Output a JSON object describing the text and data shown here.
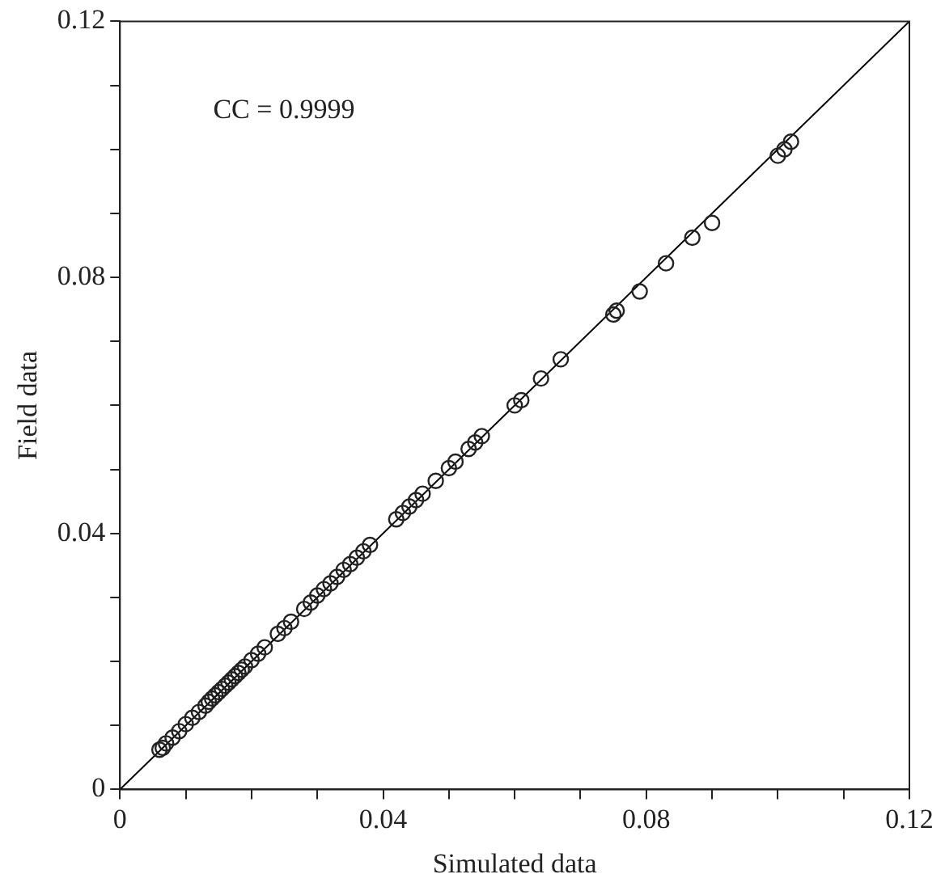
{
  "chart_data": {
    "type": "scatter",
    "xlabel": "Simulated data",
    "ylabel": "Field data",
    "annotations": [
      "CC = 0.9999"
    ],
    "xlim": [
      0,
      0.12
    ],
    "ylim": [
      0,
      0.12
    ],
    "xticks": [
      0,
      {
        "value": 0.01,
        "label": null
      },
      {
        "value": 0.02,
        "label": null
      },
      {
        "value": 0.03,
        "label": null
      },
      0.04,
      {
        "value": 0.05,
        "label": null
      },
      {
        "value": 0.06,
        "label": null
      },
      {
        "value": 0.07,
        "label": null
      },
      0.08,
      {
        "value": 0.09,
        "label": null
      },
      {
        "value": 0.1,
        "label": null
      },
      {
        "value": 0.11,
        "label": null
      },
      0.12
    ],
    "yticks": [
      0,
      {
        "value": 0.01,
        "label": null
      },
      {
        "value": 0.02,
        "label": null
      },
      {
        "value": 0.03,
        "label": null
      },
      0.04,
      {
        "value": 0.05,
        "label": null
      },
      {
        "value": 0.06,
        "label": null
      },
      {
        "value": 0.07,
        "label": null
      },
      0.08,
      {
        "value": 0.09,
        "label": null
      },
      {
        "value": 0.1,
        "label": null
      },
      {
        "value": 0.11,
        "label": null
      },
      0.12
    ],
    "grid": false,
    "legend": false,
    "marker": "circle",
    "series": [
      {
        "color": "#222222",
        "x": [
          0.006,
          0.0065,
          0.007,
          0.008,
          0.009,
          0.01,
          0.011,
          0.012,
          0.013,
          0.0135,
          0.014,
          0.0145,
          0.015,
          0.0155,
          0.016,
          0.0165,
          0.017,
          0.0175,
          0.018,
          0.0185,
          0.019,
          0.02,
          0.021,
          0.022,
          0.024,
          0.025,
          0.026,
          0.028,
          0.029,
          0.03,
          0.031,
          0.032,
          0.033,
          0.034,
          0.035,
          0.036,
          0.037,
          0.038,
          0.042,
          0.043,
          0.044,
          0.045,
          0.046,
          0.048,
          0.05,
          0.051,
          0.053,
          0.054,
          0.055,
          0.06,
          0.061,
          0.064,
          0.067,
          0.075,
          0.0755,
          0.079,
          0.083,
          0.087,
          0.09,
          0.1,
          0.101,
          0.102
        ],
        "values": [
          0.0062,
          0.0065,
          0.0072,
          0.0081,
          0.0091,
          0.0102,
          0.0112,
          0.0121,
          0.0131,
          0.0137,
          0.0142,
          0.0147,
          0.0152,
          0.0157,
          0.0162,
          0.0167,
          0.0172,
          0.0177,
          0.0182,
          0.0187,
          0.0192,
          0.0202,
          0.0212,
          0.0222,
          0.0243,
          0.0252,
          0.0262,
          0.0282,
          0.0292,
          0.0303,
          0.0313,
          0.0322,
          0.0332,
          0.0343,
          0.0352,
          0.0362,
          0.0372,
          0.0382,
          0.0422,
          0.0432,
          0.0442,
          0.0452,
          0.0462,
          0.0482,
          0.0502,
          0.0512,
          0.0532,
          0.0542,
          0.0552,
          0.06,
          0.0608,
          0.0642,
          0.0672,
          0.0742,
          0.0748,
          0.0778,
          0.0822,
          0.0862,
          0.0885,
          0.099,
          0.1,
          0.1012
        ]
      },
      {
        "type": "line",
        "color": "#000000",
        "marker": "none",
        "line_style": "solid",
        "x": [
          0,
          0.12
        ],
        "values": [
          0,
          0.12
        ]
      }
    ]
  }
}
